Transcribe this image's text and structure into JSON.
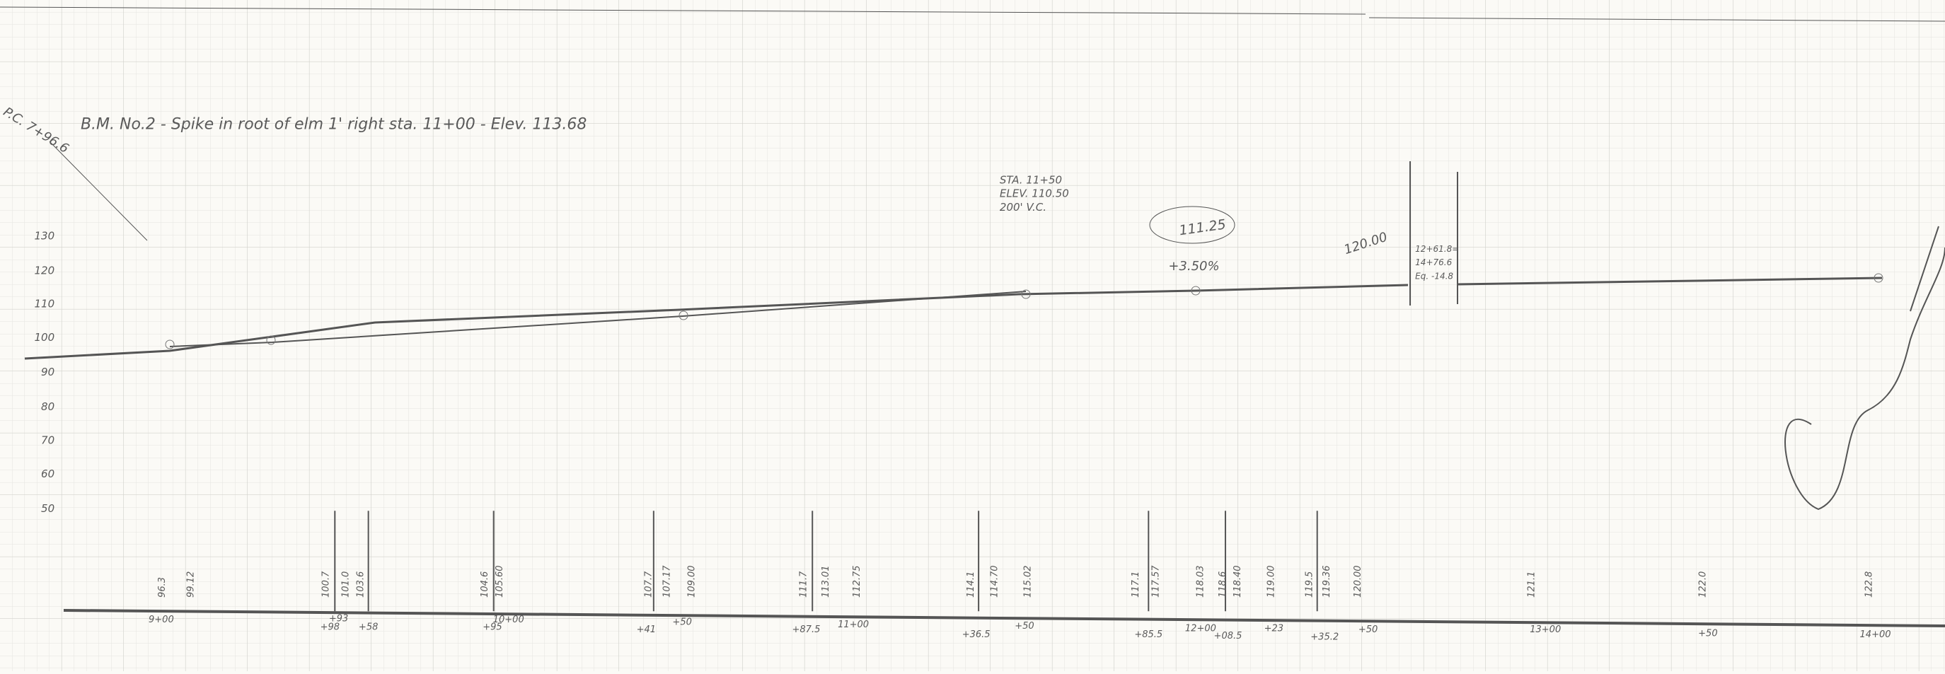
{
  "note": "B.M. No.2 - Spike in root of elm 1' right sta. 11+00 - Elev. 113.68",
  "pc_label": "P.C. 7+96.6",
  "curve": [
    "STA. 11+50",
    "ELEV. 110.50",
    "200' V.C."
  ],
  "pvi_elev": "111.25",
  "grade": "+3.50%",
  "elev_right": "120.00",
  "equation": [
    "12+61.8=",
    "14+76.6",
    "Eq. -14.8"
  ],
  "elevation_scale": [
    "130",
    "120",
    "110",
    "100",
    "90",
    "80",
    "70",
    "60",
    "50"
  ],
  "stations": [
    "9+00",
    "+93",
    "+98",
    "+58",
    "10+00",
    "+95",
    "+41",
    "+50",
    "+87.5",
    "11+00",
    "+36.5",
    "+50",
    "+85.5",
    "12+00",
    "+08.5",
    "+23",
    "+35.2",
    "+50",
    "13+00",
    "+50",
    "14+00"
  ],
  "readings": [
    "96.3",
    "99.12",
    "100.7",
    "101.0",
    "103.6",
    "104.6",
    "105.60",
    "107.7",
    "107.17",
    "109.00",
    "111.7",
    "113.01",
    "112.75",
    "114.1",
    "114.70",
    "115.02",
    "117.1",
    "117.57",
    "118.03",
    "118.6",
    "118.40",
    "119.00",
    "119.5",
    "119.36",
    "120.00",
    "121.1",
    "122.0",
    "122.8"
  ]
}
